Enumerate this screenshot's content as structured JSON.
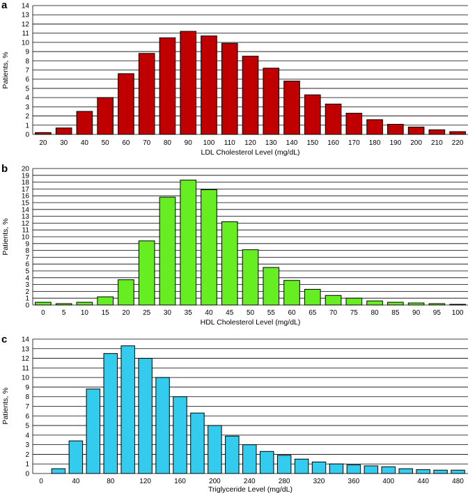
{
  "chart_data": [
    {
      "panel": "a",
      "type": "bar",
      "color": "#c00000",
      "xlabel": "LDL Cholesterol Level (mg/dL)",
      "ylabel": "Patients, %",
      "ylim": [
        0,
        14
      ],
      "yticks": [
        "0",
        "1",
        "2",
        "3",
        "4",
        "5",
        "6",
        "7",
        "8",
        "9",
        "10",
        "11",
        "12",
        "13",
        "14"
      ],
      "grid": true,
      "categories": [
        "20",
        "30",
        "40",
        "50",
        "60",
        "70",
        "80",
        "90",
        "100",
        "110",
        "120",
        "130",
        "140",
        "150",
        "160",
        "170",
        "180",
        "190",
        "200",
        "210",
        "220"
      ],
      "values": [
        0.2,
        0.7,
        2.5,
        4.0,
        6.6,
        8.8,
        10.5,
        11.2,
        10.7,
        9.9,
        8.5,
        7.2,
        5.8,
        4.3,
        3.3,
        2.3,
        1.6,
        1.1,
        0.8,
        0.5,
        0.3
      ]
    },
    {
      "panel": "b",
      "type": "bar",
      "color": "#66ee22",
      "xlabel": "HDL Cholesterol Level (mg/dL)",
      "ylabel": "Patients, %",
      "ylim": [
        0,
        20
      ],
      "yticks": [
        "0",
        "1",
        "2",
        "3",
        "4",
        "5",
        "6",
        "7",
        "8",
        "9",
        "10",
        "11",
        "12",
        "13",
        "14",
        "15",
        "16",
        "17",
        "18",
        "19",
        "20"
      ],
      "grid": true,
      "categories": [
        "0",
        "5",
        "10",
        "15",
        "20",
        "25",
        "30",
        "35",
        "40",
        "45",
        "50",
        "55",
        "60",
        "65",
        "70",
        "75",
        "80",
        "85",
        "90",
        "95",
        "100"
      ],
      "values": [
        0.4,
        0.2,
        0.4,
        1.2,
        3.7,
        9.4,
        15.8,
        18.3,
        16.9,
        12.2,
        8.1,
        5.5,
        3.6,
        2.3,
        1.4,
        1.0,
        0.6,
        0.4,
        0.3,
        0.2,
        0.1
      ]
    },
    {
      "panel": "c",
      "type": "bar",
      "color": "#33ccee",
      "xlabel": "Triglyceride Level (mg/dL)",
      "ylabel": "Patients, %",
      "ylim": [
        0,
        14
      ],
      "yticks": [
        "0",
        "1",
        "2",
        "3",
        "4",
        "5",
        "6",
        "7",
        "8",
        "9",
        "10",
        "11",
        "12",
        "13",
        "14"
      ],
      "grid": true,
      "bin_width": 20,
      "bin_centers": [
        20,
        40,
        60,
        80,
        100,
        120,
        140,
        160,
        180,
        200,
        220,
        240,
        260,
        280,
        300,
        320,
        340,
        360,
        380,
        400,
        420,
        440,
        460,
        480
      ],
      "values": [
        0.5,
        3.4,
        8.8,
        12.5,
        13.3,
        12.0,
        10.0,
        8.0,
        6.3,
        5.0,
        3.9,
        3.0,
        2.3,
        1.9,
        1.5,
        1.2,
        1.0,
        0.9,
        0.8,
        0.7,
        0.5,
        0.4,
        0.35,
        0.35
      ],
      "xlim": [
        0,
        490
      ],
      "xticks": [
        "0",
        "40",
        "80",
        "120",
        "160",
        "200",
        "240",
        "280",
        "320",
        "360",
        "400",
        "440",
        "480"
      ]
    }
  ]
}
